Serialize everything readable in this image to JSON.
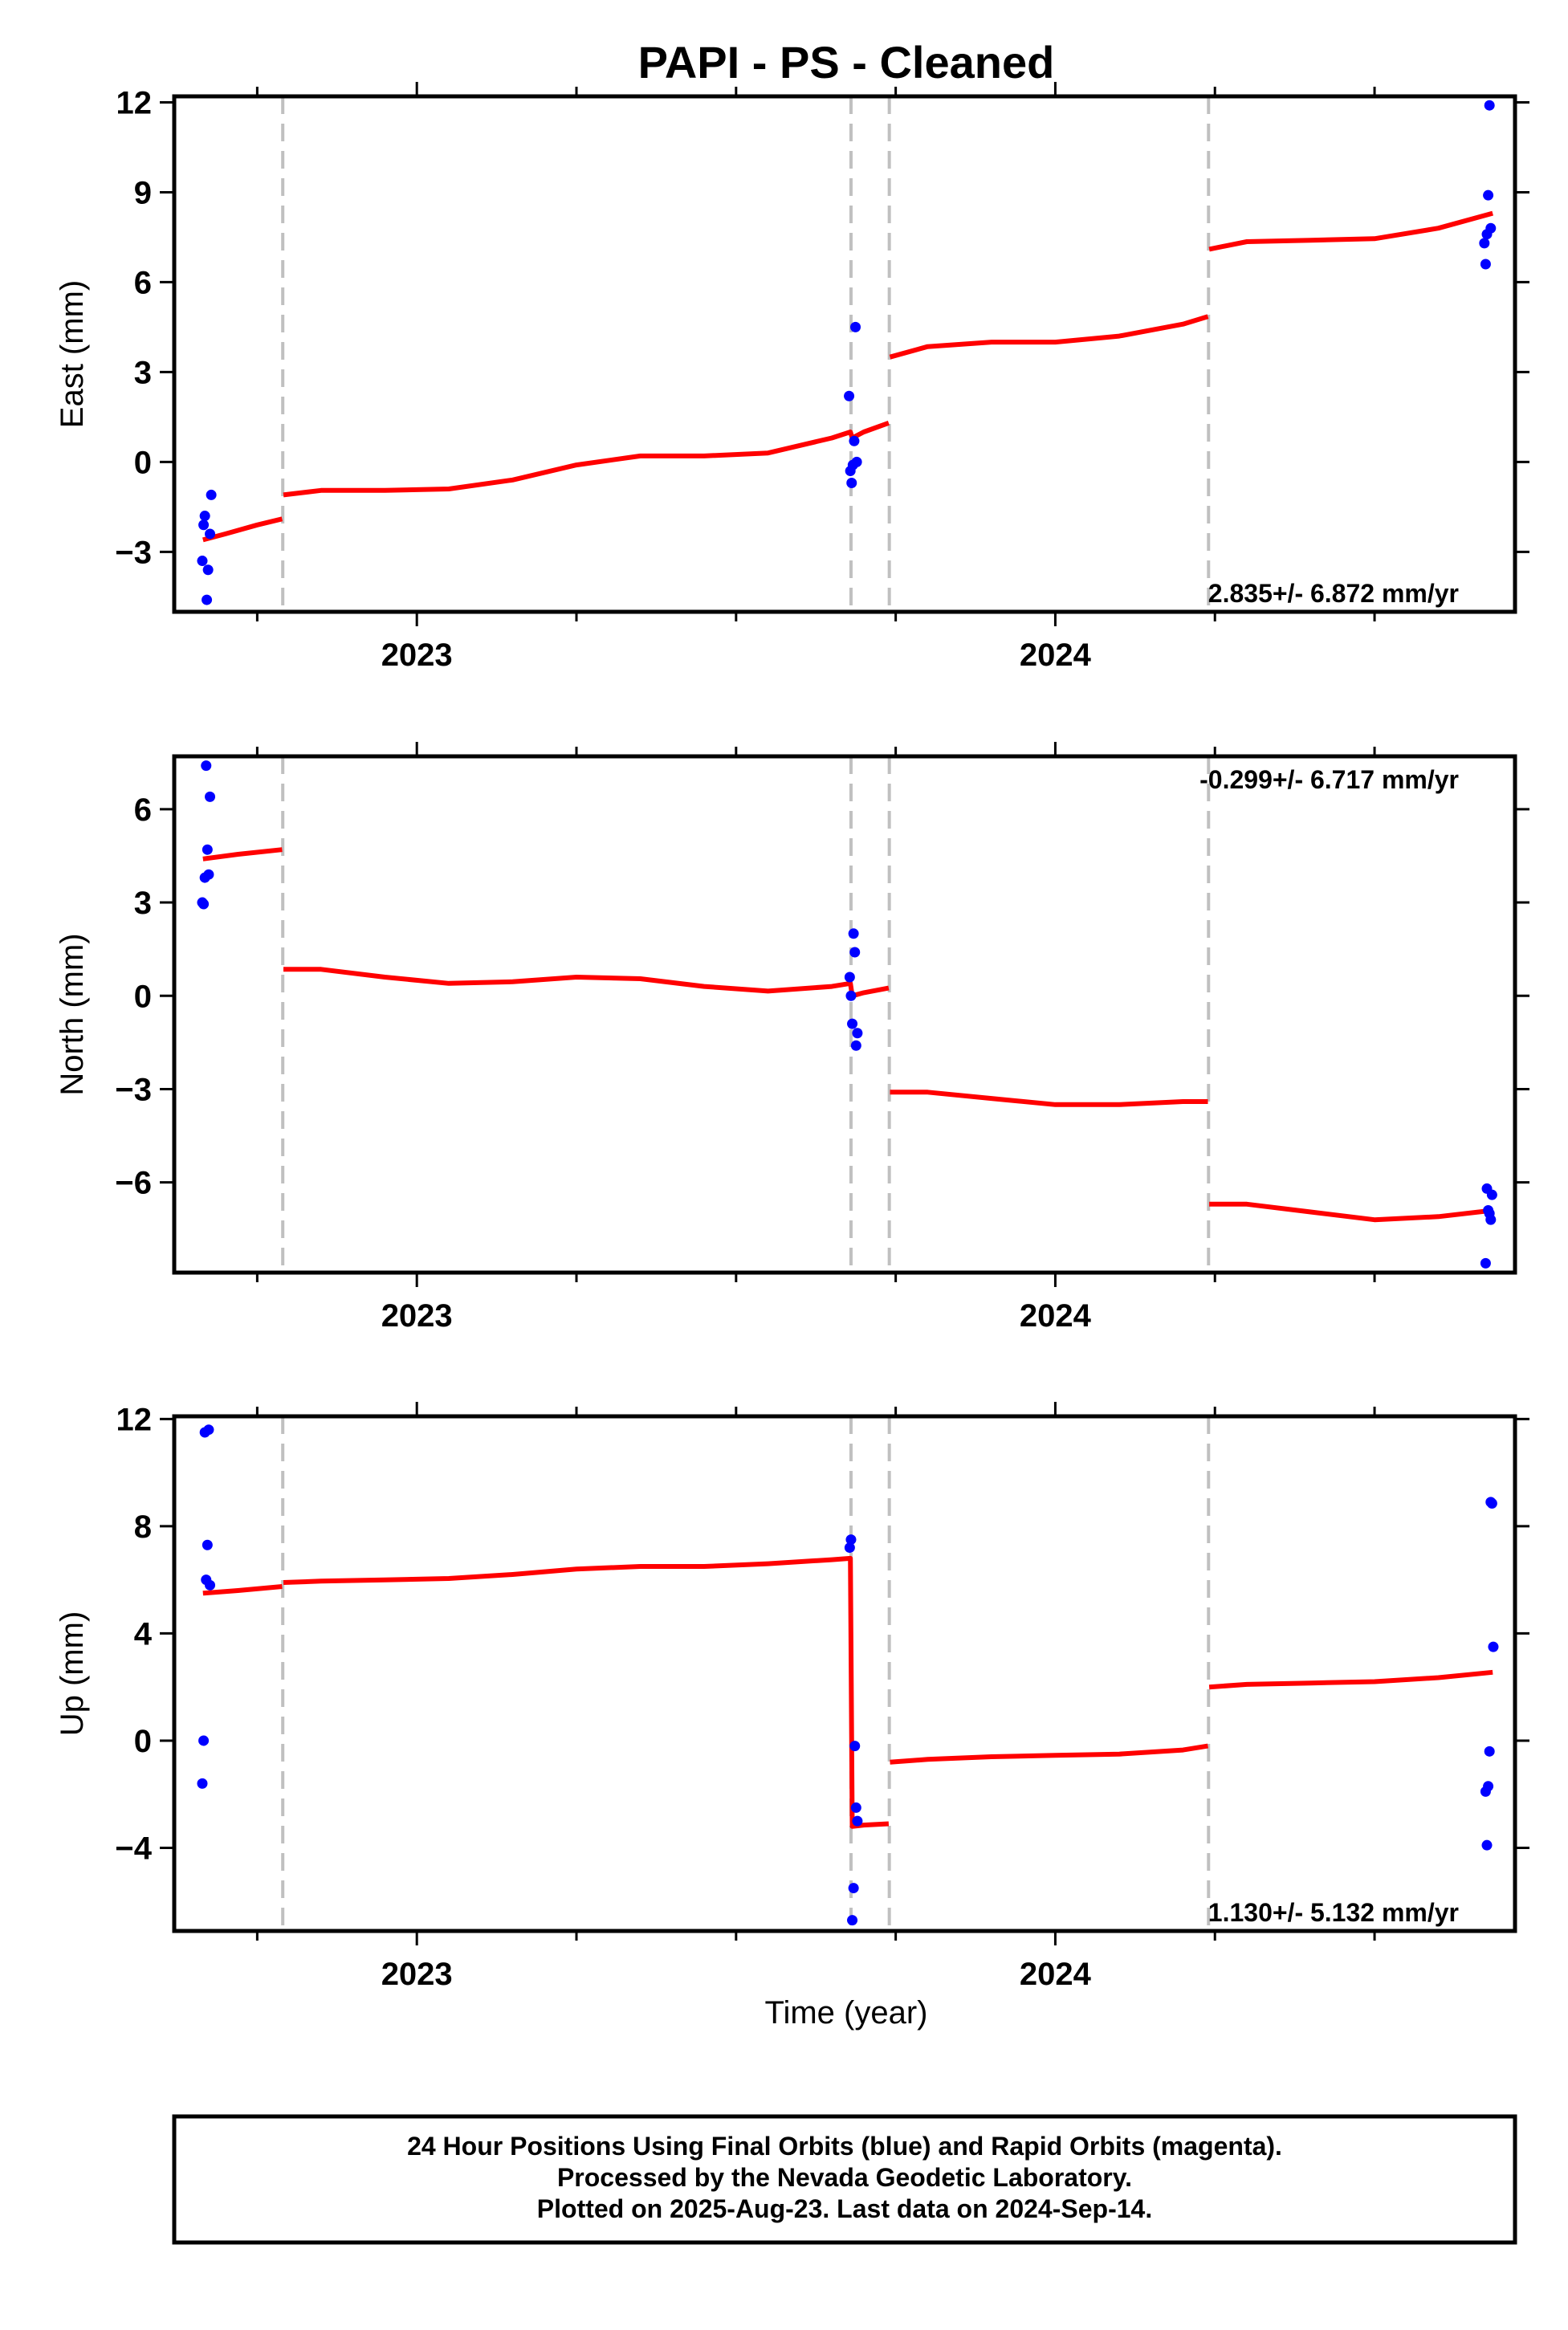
{
  "title": "PAPI  - PS - Cleaned",
  "xlabel": "Time (year)",
  "footer": {
    "line1": "24 Hour Positions Using Final Orbits (blue) and Rapid Orbits (magenta).",
    "line2": "Processed by the Nevada Geodetic Laboratory.",
    "line3": "Plotted on 2025-Aug-23. Last data on 2024-Sep-14."
  },
  "colors": {
    "final_orbits": "#0000ff",
    "model": "#ff0000",
    "event_lines": "#c0c0c0"
  },
  "chart_data": [
    {
      "type": "scatter",
      "ylabel": "East (mm)",
      "rate_label": "2.835+/- 6.872 mm/yr",
      "rate_position": "bottom-right",
      "xlim": [
        2022.62,
        2024.72
      ],
      "ylim": [
        -5,
        12.2
      ],
      "yticks": [
        -3,
        0,
        3,
        6,
        9,
        12
      ],
      "xticks": [
        2023,
        2024
      ],
      "event_lines": [
        2022.79,
        2023.68,
        2023.74,
        2024.24
      ],
      "points": [
        [
          2022.664,
          -3.3
        ],
        [
          2022.666,
          -2.1
        ],
        [
          2022.668,
          -1.8
        ],
        [
          2022.671,
          -4.6
        ],
        [
          2022.673,
          -3.6
        ],
        [
          2022.676,
          -2.4
        ],
        [
          2022.678,
          -1.1
        ],
        [
          2023.677,
          2.2
        ],
        [
          2023.679,
          -0.3
        ],
        [
          2023.681,
          -0.7
        ],
        [
          2023.683,
          -0.1
        ],
        [
          2023.685,
          0.7
        ],
        [
          2023.687,
          4.5
        ],
        [
          2023.689,
          0.0
        ],
        [
          2024.672,
          7.3
        ],
        [
          2024.674,
          6.6
        ],
        [
          2024.676,
          7.6
        ],
        [
          2024.678,
          8.9
        ],
        [
          2024.68,
          11.9
        ],
        [
          2024.682,
          7.8
        ]
      ],
      "model": [
        [
          2022.665,
          -2.6
        ],
        [
          2022.7,
          -2.4
        ],
        [
          2022.75,
          -2.1
        ],
        [
          2022.789,
          -1.9
        ],
        [
          null,
          null
        ],
        [
          2022.791,
          -1.1
        ],
        [
          2022.85,
          -0.95
        ],
        [
          2022.95,
          -0.95
        ],
        [
          2023.05,
          -0.9
        ],
        [
          2023.15,
          -0.6
        ],
        [
          2023.25,
          -0.1
        ],
        [
          2023.35,
          0.2
        ],
        [
          2023.45,
          0.2
        ],
        [
          2023.55,
          0.3
        ],
        [
          2023.65,
          0.8
        ],
        [
          2023.679,
          1.0
        ],
        [
          2023.682,
          0.8
        ],
        [
          2023.7,
          1.0
        ],
        [
          2023.739,
          1.3
        ],
        [
          null,
          null
        ],
        [
          2023.741,
          3.5
        ],
        [
          2023.8,
          3.85
        ],
        [
          2023.9,
          4.0
        ],
        [
          2024.0,
          4.0
        ],
        [
          2024.1,
          4.2
        ],
        [
          2024.2,
          4.6
        ],
        [
          2024.239,
          4.85
        ],
        [
          null,
          null
        ],
        [
          2024.241,
          7.1
        ],
        [
          2024.3,
          7.35
        ],
        [
          2024.4,
          7.4
        ],
        [
          2024.5,
          7.45
        ],
        [
          2024.6,
          7.8
        ],
        [
          2024.685,
          8.3
        ]
      ]
    },
    {
      "type": "scatter",
      "ylabel": "North (mm)",
      "rate_label": "-0.299+/- 6.717 mm/yr",
      "rate_position": "top-right",
      "xlim": [
        2022.62,
        2024.72
      ],
      "ylim": [
        -8.9,
        7.7
      ],
      "yticks": [
        -6,
        -3,
        0,
        3,
        6
      ],
      "xticks": [
        2023,
        2024
      ],
      "event_lines": [
        2022.79,
        2023.68,
        2023.74,
        2024.24
      ],
      "points": [
        [
          2022.664,
          3.0
        ],
        [
          2022.666,
          2.95
        ],
        [
          2022.668,
          3.8
        ],
        [
          2022.67,
          7.4
        ],
        [
          2022.672,
          4.7
        ],
        [
          2022.674,
          3.9
        ],
        [
          2022.676,
          6.4
        ],
        [
          2023.678,
          0.6
        ],
        [
          2023.68,
          0.0
        ],
        [
          2023.682,
          -0.9
        ],
        [
          2023.684,
          2.0
        ],
        [
          2023.686,
          1.4
        ],
        [
          2023.688,
          -1.6
        ],
        [
          2023.69,
          -1.2
        ],
        [
          2024.674,
          -8.6
        ],
        [
          2024.676,
          -6.2
        ],
        [
          2024.678,
          -6.9
        ],
        [
          2024.68,
          -7.0
        ],
        [
          2024.682,
          -7.2
        ],
        [
          2024.684,
          -6.4
        ]
      ],
      "model": [
        [
          2022.665,
          4.4
        ],
        [
          2022.72,
          4.55
        ],
        [
          2022.789,
          4.7
        ],
        [
          null,
          null
        ],
        [
          2022.791,
          0.85
        ],
        [
          2022.85,
          0.85
        ],
        [
          2022.95,
          0.6
        ],
        [
          2023.05,
          0.4
        ],
        [
          2023.15,
          0.45
        ],
        [
          2023.25,
          0.6
        ],
        [
          2023.35,
          0.55
        ],
        [
          2023.45,
          0.3
        ],
        [
          2023.55,
          0.15
        ],
        [
          2023.65,
          0.3
        ],
        [
          2023.679,
          0.4
        ],
        [
          2023.682,
          0.0
        ],
        [
          2023.7,
          0.1
        ],
        [
          2023.739,
          0.25
        ],
        [
          null,
          null
        ],
        [
          2023.741,
          -3.1
        ],
        [
          2023.8,
          -3.1
        ],
        [
          2023.9,
          -3.3
        ],
        [
          2024.0,
          -3.5
        ],
        [
          2024.1,
          -3.5
        ],
        [
          2024.2,
          -3.4
        ],
        [
          2024.239,
          -3.4
        ],
        [
          null,
          null
        ],
        [
          2024.241,
          -6.7
        ],
        [
          2024.3,
          -6.7
        ],
        [
          2024.4,
          -6.95
        ],
        [
          2024.5,
          -7.2
        ],
        [
          2024.6,
          -7.1
        ],
        [
          2024.685,
          -6.9
        ]
      ]
    },
    {
      "type": "scatter",
      "ylabel": "Up (mm)",
      "rate_label": "1.130+/- 5.132 mm/yr",
      "rate_position": "bottom-right",
      "xlim": [
        2022.62,
        2024.72
      ],
      "ylim": [
        -7.1,
        12.1
      ],
      "yticks": [
        -4,
        0,
        4,
        8,
        12
      ],
      "xticks": [
        2023,
        2024
      ],
      "event_lines": [
        2022.79,
        2023.68,
        2023.74,
        2024.24
      ],
      "points": [
        [
          2022.664,
          -1.6
        ],
        [
          2022.666,
          0.0
        ],
        [
          2022.668,
          11.5
        ],
        [
          2022.67,
          6.0
        ],
        [
          2022.672,
          7.3
        ],
        [
          2022.674,
          11.6
        ],
        [
          2022.676,
          5.8
        ],
        [
          2023.678,
          7.2
        ],
        [
          2023.68,
          7.5
        ],
        [
          2023.682,
          -6.7
        ],
        [
          2023.684,
          -5.5
        ],
        [
          2023.686,
          -0.2
        ],
        [
          2023.688,
          -2.5
        ],
        [
          2023.69,
          -3.0
        ],
        [
          2024.674,
          -1.9
        ],
        [
          2024.676,
          -3.9
        ],
        [
          2024.678,
          -1.7
        ],
        [
          2024.68,
          -0.4
        ],
        [
          2024.682,
          8.9
        ],
        [
          2024.684,
          8.85
        ],
        [
          2024.686,
          3.5
        ]
      ],
      "model": [
        [
          2022.665,
          5.5
        ],
        [
          2022.72,
          5.6
        ],
        [
          2022.789,
          5.75
        ],
        [
          null,
          null
        ],
        [
          2022.791,
          5.9
        ],
        [
          2022.85,
          5.95
        ],
        [
          2022.95,
          6.0
        ],
        [
          2023.05,
          6.05
        ],
        [
          2023.15,
          6.2
        ],
        [
          2023.25,
          6.4
        ],
        [
          2023.35,
          6.5
        ],
        [
          2023.45,
          6.5
        ],
        [
          2023.55,
          6.6
        ],
        [
          2023.65,
          6.75
        ],
        [
          2023.679,
          6.8
        ],
        [
          2023.682,
          -3.2
        ],
        [
          2023.7,
          -3.15
        ],
        [
          2023.739,
          -3.1
        ],
        [
          null,
          null
        ],
        [
          2023.741,
          -0.8
        ],
        [
          2023.8,
          -0.7
        ],
        [
          2023.9,
          -0.6
        ],
        [
          2024.0,
          -0.55
        ],
        [
          2024.1,
          -0.5
        ],
        [
          2024.2,
          -0.35
        ],
        [
          2024.239,
          -0.2
        ],
        [
          null,
          null
        ],
        [
          2024.241,
          2.0
        ],
        [
          2024.3,
          2.1
        ],
        [
          2024.4,
          2.15
        ],
        [
          2024.5,
          2.2
        ],
        [
          2024.6,
          2.35
        ],
        [
          2024.685,
          2.55
        ]
      ]
    }
  ]
}
